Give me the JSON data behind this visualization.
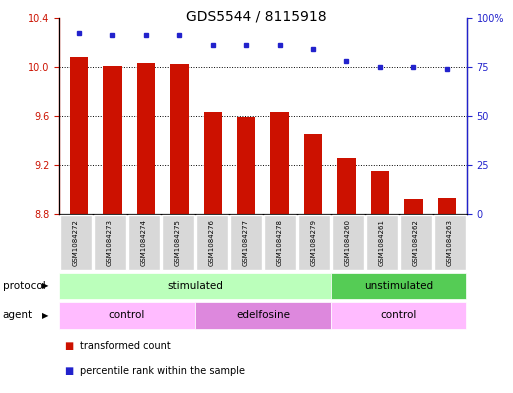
{
  "title": "GDS5544 / 8115918",
  "samples": [
    "GSM1084272",
    "GSM1084273",
    "GSM1084274",
    "GSM1084275",
    "GSM1084276",
    "GSM1084277",
    "GSM1084278",
    "GSM1084279",
    "GSM1084260",
    "GSM1084261",
    "GSM1084262",
    "GSM1084263"
  ],
  "bar_values": [
    10.08,
    10.01,
    10.035,
    10.02,
    9.63,
    9.595,
    9.63,
    9.45,
    9.255,
    9.155,
    8.92,
    8.935
  ],
  "percentile_values": [
    92,
    91,
    91,
    91,
    86,
    86,
    86,
    84,
    78,
    75,
    75,
    74
  ],
  "ylim_left": [
    8.8,
    10.4
  ],
  "ylim_right": [
    0,
    100
  ],
  "yticks_left": [
    8.8,
    9.2,
    9.6,
    10.0,
    10.4
  ],
  "yticks_right": [
    0,
    25,
    50,
    75,
    100
  ],
  "bar_color": "#cc1100",
  "dot_color": "#2222cc",
  "bar_bottom": 8.8,
  "protocol_labels": [
    {
      "text": "stimulated",
      "start": 0,
      "end": 8,
      "color": "#bbffbb"
    },
    {
      "text": "unstimulated",
      "start": 8,
      "end": 12,
      "color": "#55cc55"
    }
  ],
  "agent_labels": [
    {
      "text": "control",
      "start": 0,
      "end": 4,
      "color": "#ffbbff"
    },
    {
      "text": "edelfosine",
      "start": 4,
      "end": 8,
      "color": "#dd88dd"
    },
    {
      "text": "control",
      "start": 8,
      "end": 12,
      "color": "#ffbbff"
    }
  ],
  "legend_items": [
    {
      "label": "transformed count",
      "color": "#cc1100"
    },
    {
      "label": "percentile rank within the sample",
      "color": "#2222cc"
    }
  ],
  "protocol_row_label": "protocol",
  "agent_row_label": "agent",
  "tick_color_left": "#cc1100",
  "tick_color_right": "#2222cc"
}
